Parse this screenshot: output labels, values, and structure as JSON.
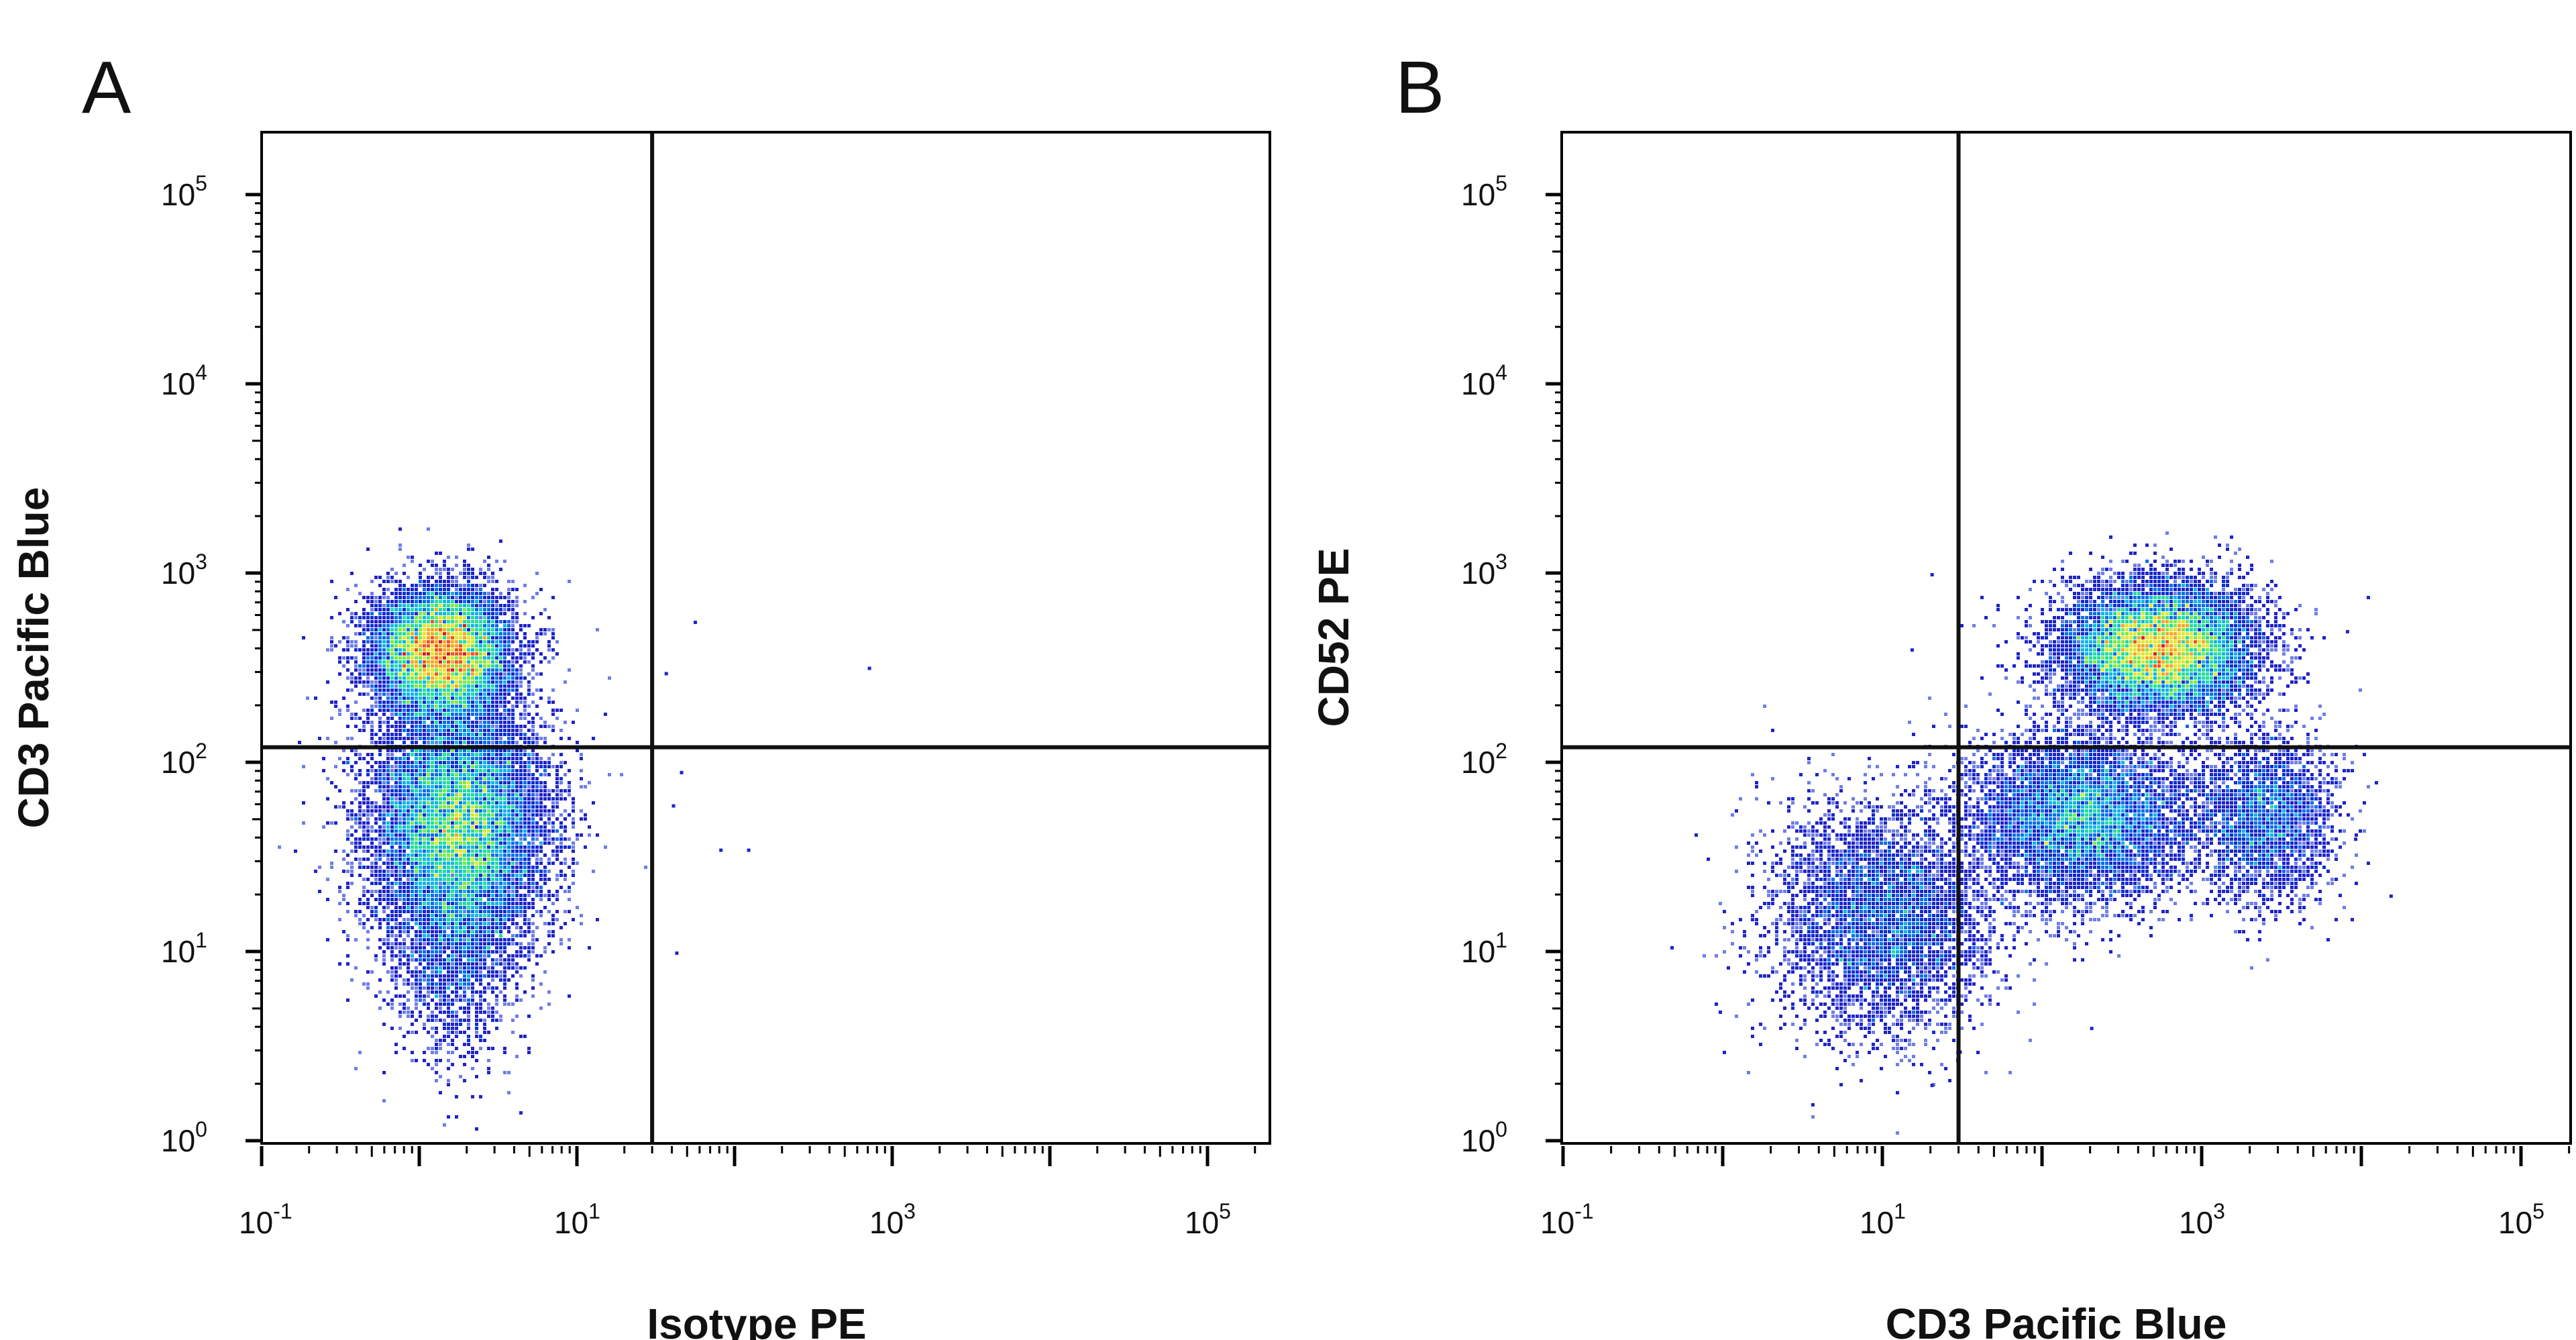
{
  "chart_data": [
    {
      "type": "scatter",
      "panel": "A",
      "xlabel": "Isotype PE",
      "ylabel": "CD3 Pacific Blue",
      "x_scale": "log",
      "y_scale": "log",
      "xlim": [
        0.07,
        120000
      ],
      "ylim": [
        1,
        300000
      ],
      "x_ticks": [
        {
          "base": "10",
          "exp": "-1",
          "value": 0.1
        },
        {
          "base": "10",
          "exp": "1",
          "value": 10
        },
        {
          "base": "10",
          "exp": "3",
          "value": 1000
        },
        {
          "base": "10",
          "exp": "5",
          "value": 100000
        }
      ],
      "y_ticks": [
        {
          "base": "10",
          "exp": "0",
          "value": 1
        },
        {
          "base": "10",
          "exp": "1",
          "value": 10
        },
        {
          "base": "10",
          "exp": "2",
          "value": 100
        },
        {
          "base": "10",
          "exp": "3",
          "value": 1000
        },
        {
          "base": "10",
          "exp": "4",
          "value": 10000
        },
        {
          "base": "10",
          "exp": "5",
          "value": 100000
        }
      ],
      "quadrant_gate": {
        "x": 30,
        "y": 120
      },
      "populations": [
        {
          "x": 1.4,
          "y": 380,
          "count": 9000,
          "spread_x": 0.22,
          "spread_y": 0.17
        },
        {
          "x": 1.8,
          "y": 45,
          "count": 11000,
          "spread_x": 0.28,
          "spread_y": 0.33
        },
        {
          "x": 1.6,
          "y": 10,
          "count": 1500,
          "spread_x": 0.2,
          "spread_y": 0.3
        }
      ],
      "sparse_points": [
        {
          "x": 55,
          "y": 560
        },
        {
          "x": 45,
          "y": 90
        },
        {
          "x": 40,
          "y": 60
        },
        {
          "x": 80,
          "y": 35
        },
        {
          "x": 700,
          "y": 320
        },
        {
          "x": 120,
          "y": 35
        },
        {
          "x": 42,
          "y": 10
        },
        {
          "x": 36,
          "y": 300
        }
      ],
      "grid": false,
      "legend": "none"
    },
    {
      "type": "scatter",
      "panel": "B",
      "xlabel": "CD3 Pacific Blue",
      "ylabel": "CD52 PE",
      "x_scale": "log",
      "y_scale": "log",
      "xlim": [
        0.07,
        120000
      ],
      "ylim": [
        1,
        300000
      ],
      "x_ticks": [
        {
          "base": "10",
          "exp": "-1",
          "value": 0.1
        },
        {
          "base": "10",
          "exp": "1",
          "value": 10
        },
        {
          "base": "10",
          "exp": "3",
          "value": 1000
        },
        {
          "base": "10",
          "exp": "5",
          "value": 100000
        }
      ],
      "y_ticks": [
        {
          "base": "10",
          "exp": "0",
          "value": 1
        },
        {
          "base": "10",
          "exp": "1",
          "value": 10
        },
        {
          "base": "10",
          "exp": "2",
          "value": 100
        },
        {
          "base": "10",
          "exp": "3",
          "value": 1000
        },
        {
          "base": "10",
          "exp": "4",
          "value": 10000
        },
        {
          "base": "10",
          "exp": "5",
          "value": 100000
        }
      ],
      "quadrant_gate": {
        "x": 30,
        "y": 120
      },
      "populations": [
        {
          "x": 550,
          "y": 400,
          "count": 10000,
          "spread_x": 0.3,
          "spread_y": 0.17
        },
        {
          "x": 180,
          "y": 50,
          "count": 6000,
          "spread_x": 0.35,
          "spread_y": 0.22
        },
        {
          "x": 2500,
          "y": 50,
          "count": 2500,
          "spread_x": 0.22,
          "spread_y": 0.22
        },
        {
          "x": 10,
          "y": 15,
          "count": 4500,
          "spread_x": 0.35,
          "spread_y": 0.3
        }
      ],
      "sparse_points": [
        {
          "x": 20,
          "y": 1000
        },
        {
          "x": 15,
          "y": 400
        },
        {
          "x": 30,
          "y": 3
        },
        {
          "x": 20,
          "y": 2
        },
        {
          "x": 9000,
          "y": 40
        },
        {
          "x": 15000,
          "y": 20
        },
        {
          "x": 8000,
          "y": 500
        },
        {
          "x": 200,
          "y": 4
        }
      ],
      "grid": false,
      "legend": "none"
    }
  ],
  "colors": {
    "axis": "#000000",
    "gate_line": "#111111",
    "density_scale": [
      "#c9d2f5",
      "#6f7fe6",
      "#1f24c8",
      "#0a2fd6",
      "#0b6fe8",
      "#10b6e3",
      "#22dd9c",
      "#7de84a",
      "#e0e62c",
      "#f7a820",
      "#f2561a",
      "#d8231a"
    ]
  }
}
